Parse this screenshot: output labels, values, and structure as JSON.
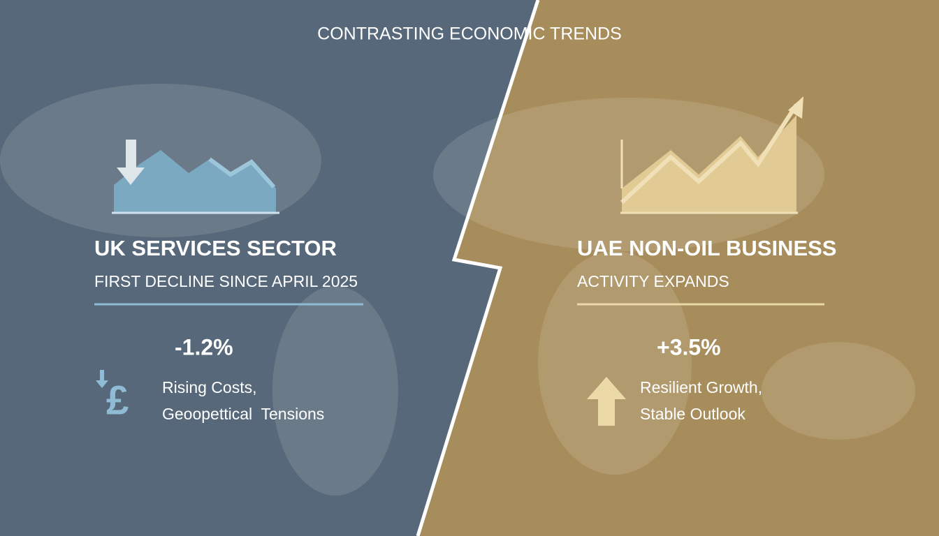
{
  "header": {
    "title": "CONTRASTING ECONOMIC TRENDS"
  },
  "left": {
    "title": "UK SERVICES SECTOR",
    "subtitle": "FIRST DECLINE SINCE APRIL 2025",
    "figure": "-1.2%",
    "icon": "£",
    "notes": [
      "Rising Costs,",
      "Geoopettical  Tensions"
    ]
  },
  "right": {
    "title": "UAE NON-OIL BUSINESS",
    "subtitle": "ACTIVITY EXPANDS",
    "figure": "+3.5%",
    "notes": [
      "Resilient Growth,",
      "Stable Outlook"
    ]
  }
}
